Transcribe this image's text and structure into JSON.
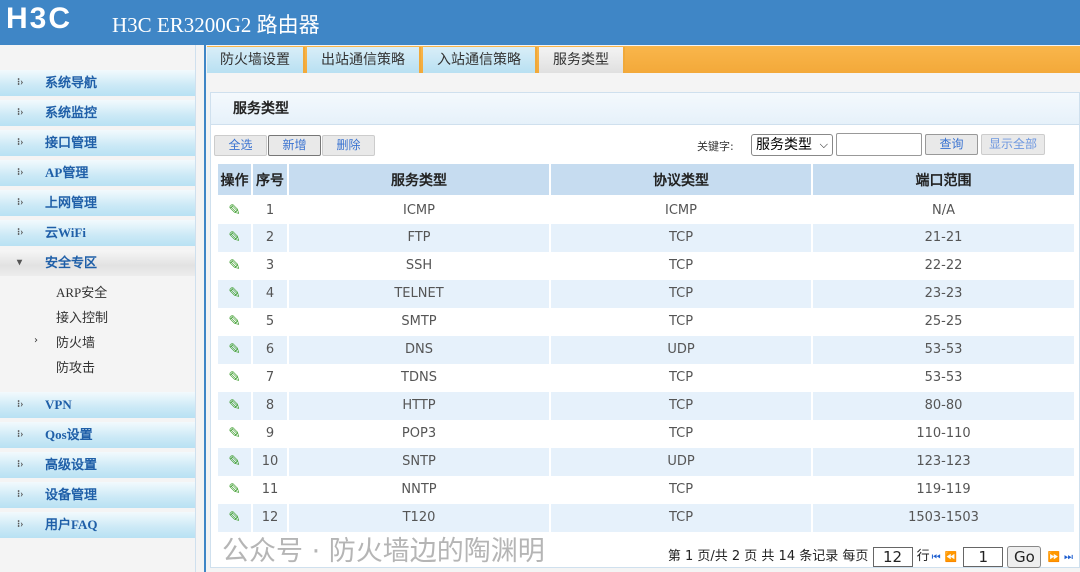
{
  "header": {
    "logo": "H3C",
    "title": "H3C ER3200G2 路由器"
  },
  "sidebar": {
    "items": [
      {
        "label": "系统导航"
      },
      {
        "label": "系统监控"
      },
      {
        "label": "接口管理"
      },
      {
        "label": "AP管理"
      },
      {
        "label": "上网管理"
      },
      {
        "label": "云WiFi"
      },
      {
        "label": "安全专区",
        "expanded": true
      },
      {
        "label": "VPN"
      },
      {
        "label": "Qos设置"
      },
      {
        "label": "高级设置"
      },
      {
        "label": "设备管理"
      },
      {
        "label": "用户FAQ"
      }
    ],
    "sub_items": [
      {
        "label": "ARP安全"
      },
      {
        "label": "接入控制"
      },
      {
        "label": "防火墙",
        "selected": true
      },
      {
        "label": "防攻击"
      }
    ]
  },
  "tabs": [
    {
      "label": "防火墙设置"
    },
    {
      "label": "出站通信策略"
    },
    {
      "label": "入站通信策略"
    },
    {
      "label": "服务类型",
      "active": true
    }
  ],
  "panel": {
    "title": "服务类型"
  },
  "toolbar": {
    "select_all": "全选",
    "add": "新增",
    "delete": "删除",
    "keyword_label": "关键字:",
    "keyword_select": "服务类型",
    "keyword_value": "",
    "search": "查询",
    "show_all": "显示全部"
  },
  "table": {
    "headers": [
      "操作",
      "序号",
      "服务类型",
      "协议类型",
      "端口范围"
    ],
    "rows": [
      [
        "1",
        "ICMP",
        "ICMP",
        "N/A"
      ],
      [
        "2",
        "FTP",
        "TCP",
        "21-21"
      ],
      [
        "3",
        "SSH",
        "TCP",
        "22-22"
      ],
      [
        "4",
        "TELNET",
        "TCP",
        "23-23"
      ],
      [
        "5",
        "SMTP",
        "TCP",
        "25-25"
      ],
      [
        "6",
        "DNS",
        "UDP",
        "53-53"
      ],
      [
        "7",
        "TDNS",
        "TCP",
        "53-53"
      ],
      [
        "8",
        "HTTP",
        "TCP",
        "80-80"
      ],
      [
        "9",
        "POP3",
        "TCP",
        "110-110"
      ],
      [
        "10",
        "SNTP",
        "UDP",
        "123-123"
      ],
      [
        "11",
        "NNTP",
        "TCP",
        "119-119"
      ],
      [
        "12",
        "T120",
        "TCP",
        "1503-1503"
      ]
    ]
  },
  "pager": {
    "text": "第 1 页/共 2 页 共 14 条记录 每页",
    "per_page": "12",
    "rows_label": "行",
    "page": "1",
    "go": "Go"
  },
  "watermark": "公众号 · 防火墙边的陶渊明",
  "colors": {
    "header": "#3f86c6",
    "tabbar": "#f3a93a",
    "table_header": "#c6dcf0"
  }
}
